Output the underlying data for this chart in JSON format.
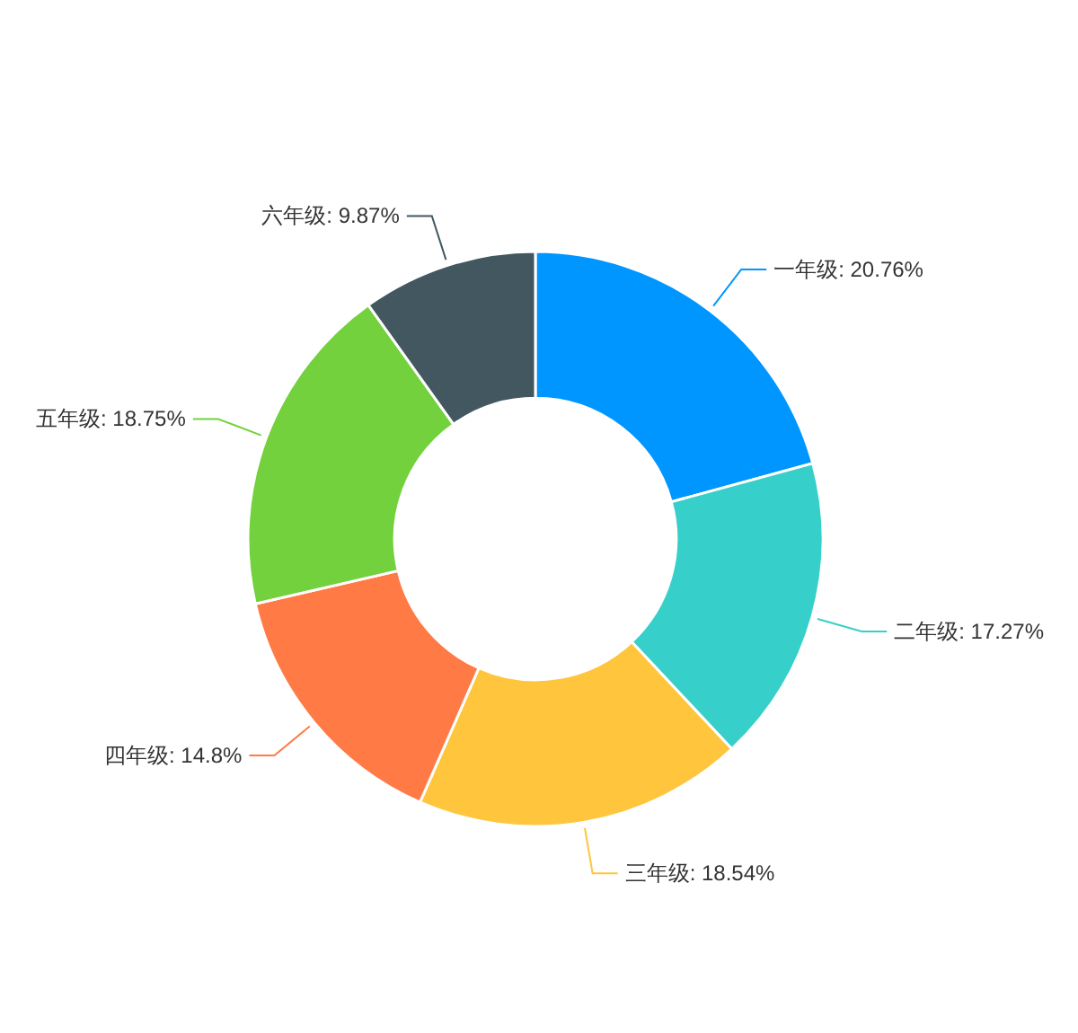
{
  "chart_data": {
    "type": "donut",
    "categories": [
      "一年级",
      "二年级",
      "三年级",
      "四年级",
      "五年级",
      "六年级"
    ],
    "values": [
      20.76,
      17.27,
      18.54,
      14.8,
      18.75,
      9.87
    ],
    "value_labels": [
      ": 20.76%",
      ": 17.27%",
      ": 18.54%",
      ": 14.8%",
      ": 18.75%",
      ": 9.87%"
    ],
    "colors": [
      "#0096ff",
      "#36cfc9",
      "#ffc53d",
      "#ff7a45",
      "#73d13d",
      "#435761"
    ]
  }
}
